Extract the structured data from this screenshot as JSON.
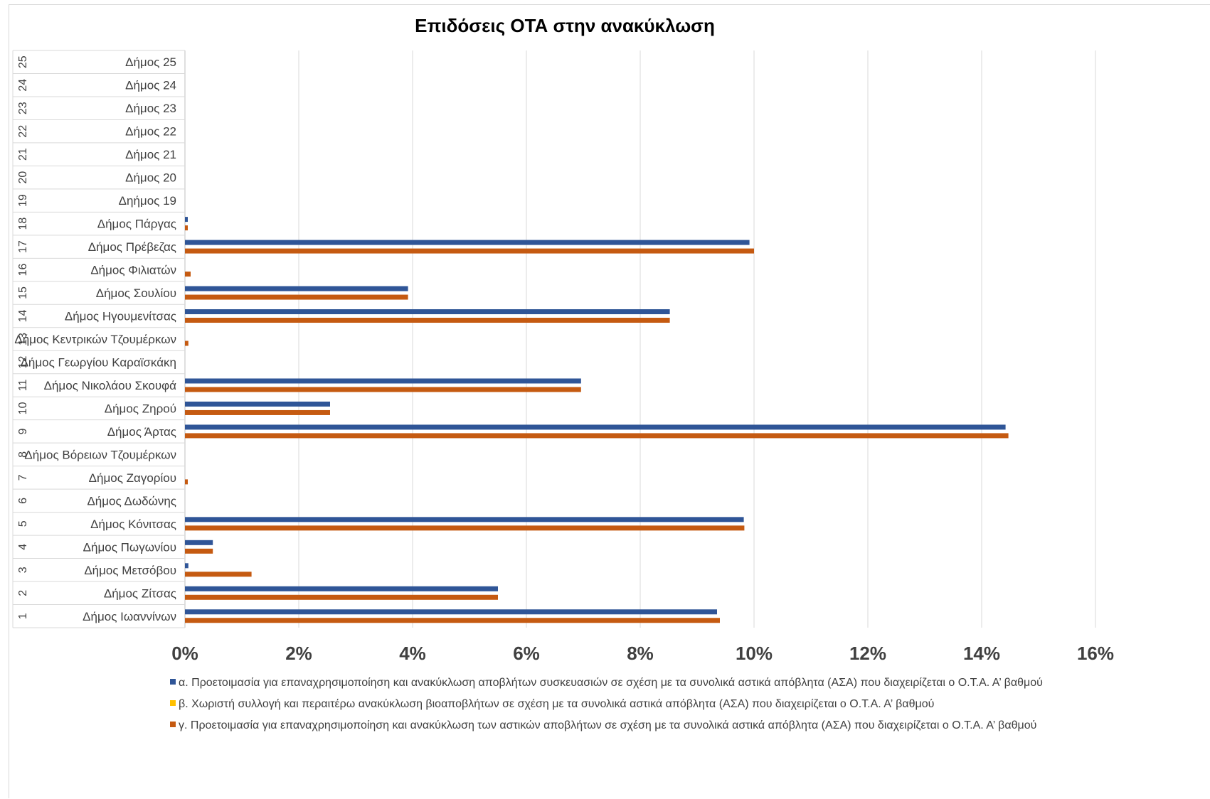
{
  "chart_data": {
    "type": "bar",
    "orientation": "horizontal",
    "title": "Επιδόσεις ΟΤΑ στην ανακύκλωση",
    "xlim": [
      0,
      16
    ],
    "x_unit": "%",
    "x_ticks": [
      "0%",
      "2%",
      "4%",
      "6%",
      "8%",
      "10%",
      "12%",
      "14%",
      "16%"
    ],
    "grid": true,
    "legend_position": "bottom",
    "categories": [
      {
        "num": "1",
        "name": "Δήμος Ιωαννίνων"
      },
      {
        "num": "2",
        "name": "Δήμος Ζίτσας"
      },
      {
        "num": "3",
        "name": "Δήμος Μετσόβου"
      },
      {
        "num": "4",
        "name": "Δήμος Πωγωνίου"
      },
      {
        "num": "5",
        "name": "Δήμος Κόνιτσας"
      },
      {
        "num": "6",
        "name": "Δήμος Δωδώνης"
      },
      {
        "num": "7",
        "name": "Δήμος Ζαγορίου"
      },
      {
        "num": "8",
        "name": "Δήμος Βόρειων Τζουμέρκων"
      },
      {
        "num": "9",
        "name": "Δήμος Άρτας"
      },
      {
        "num": "10",
        "name": "Δήμος Ζηρού"
      },
      {
        "num": "11",
        "name": "Δήμος Νικολάου Σκουφά"
      },
      {
        "num": "12",
        "name": "Δήμος Γεωργίου Καραϊσκάκη"
      },
      {
        "num": "13",
        "name": "Δήμος Κεντρικών Τζουμέρκων"
      },
      {
        "num": "14",
        "name": "Δήμος Ηγουμενίτσας"
      },
      {
        "num": "15",
        "name": "Δήμος Σουλίου"
      },
      {
        "num": "16",
        "name": "Δήμος Φιλιατών"
      },
      {
        "num": "17",
        "name": "Δήμος Πρέβεζας"
      },
      {
        "num": "18",
        "name": "Δήμος Πάργας"
      },
      {
        "num": "19",
        "name": "Δηήμος 19"
      },
      {
        "num": "20",
        "name": "Δήμος 20"
      },
      {
        "num": "21",
        "name": "Δήμος 21"
      },
      {
        "num": "22",
        "name": "Δήμος 22"
      },
      {
        "num": "23",
        "name": "Δήμος 23"
      },
      {
        "num": "24",
        "name": "Δήμος 24"
      },
      {
        "num": "25",
        "name": "Δήμος 25"
      }
    ],
    "series": [
      {
        "name": "α. Προετοιμασία για επαναχρησιμοποίηση και ανακύκλωση αποβλήτων συσκευασιών σε σχέση με τα συνολικά αστικά απόβλητα (ΑΣΑ) που διαχειρίζεται ο Ο.Τ.Α. Α’ βαθμού",
        "color": "#2f5597",
        "values": [
          9.35,
          5.5,
          0.06,
          0.49,
          9.82,
          0,
          0,
          0,
          14.42,
          2.55,
          6.96,
          0,
          0,
          8.52,
          3.92,
          0,
          9.92,
          0.05,
          0,
          0,
          0,
          0,
          0,
          0,
          0
        ]
      },
      {
        "name": "β. Χωριστή συλλογή και περαιτέρω ανακύκλωση βιοαποβλήτων σε σχέση με τα συνολικά αστικά απόβλητα (ΑΣΑ) που διαχειρίζεται ο Ο.Τ.Α. Α’ βαθμού",
        "color": "#ffc000",
        "values": [
          0,
          0,
          0,
          0,
          0,
          0,
          0,
          0,
          0,
          0,
          0,
          0,
          0,
          0,
          0,
          0,
          0,
          0,
          0,
          0,
          0,
          0,
          0,
          0,
          0
        ]
      },
      {
        "name": "γ. Προετοιμασία για επαναχρησιμοποίηση και ανακύκλωση των αστικών αποβλήτων σε σχέση με τα συνολικά αστικά απόβλητα (ΑΣΑ) που διαχειρίζεται ο Ο.Τ.Α. Α’ βαθμού",
        "color": "#c55a11",
        "values": [
          9.4,
          5.5,
          1.17,
          0.49,
          9.83,
          0,
          0.05,
          0,
          14.47,
          2.55,
          6.96,
          0,
          0.06,
          8.52,
          3.92,
          0.1,
          10.0,
          0.05,
          0,
          0,
          0,
          0,
          0,
          0,
          0
        ]
      }
    ]
  }
}
